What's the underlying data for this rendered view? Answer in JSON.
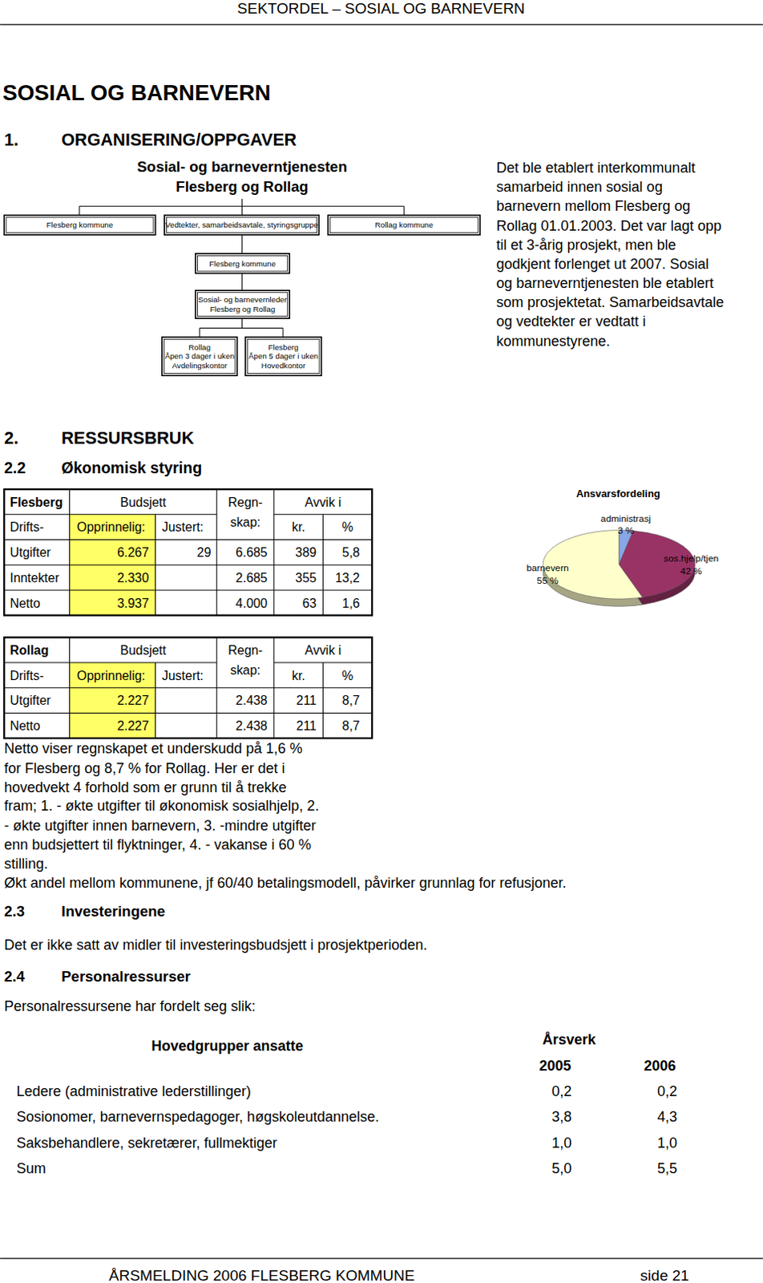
{
  "header": "SEKTORDEL – SOSIAL OG BARNEVERN",
  "title": "SOSIAL OG BARNEVERN",
  "section_1": {
    "number": "1.",
    "heading": "ORGANISERING/OPPGAVER"
  },
  "org_chart": {
    "title_lines": [
      "Sosial- og barneverntjenesten",
      "Flesberg og Rollag"
    ],
    "nodes": [
      {
        "lines": [
          "Flesberg kommune"
        ]
      },
      {
        "lines": [
          "Vedtekter, samarbeidsavtale, styringsgruppe"
        ]
      },
      {
        "lines": [
          "Rollag kommune"
        ]
      },
      {
        "lines": [
          "Flesberg kommune"
        ]
      },
      {
        "lines": [
          "Sosial- og barnevernleder",
          "Flesberg og Rollag"
        ]
      },
      {
        "lines": [
          "Rollag",
          "Åpen 3 dager i uken",
          "Avdelingskontor"
        ]
      },
      {
        "lines": [
          "Flesberg",
          "Åpen 5 dager i uken",
          "Hovedkontor"
        ]
      }
    ]
  },
  "intro_text": [
    "Det ble etablert interkommunalt",
    "samarbeid innen sosial og",
    "barnevern mellom Flesberg og",
    "Rollag 01.01.2003. Det var lagt opp",
    "til et 3-årig prosjekt, men ble",
    "godkjent forlenget ut 2007. Sosial",
    "og barneverntjenesten ble etablert",
    "som prosjektetat. Samarbeidsavtale",
    "og vedtekter er vedtatt i",
    "kommunestyrene."
  ],
  "section_2": {
    "number": "2.",
    "heading": "RESSURSBRUK"
  },
  "section_2_2": {
    "number": "2.2",
    "heading": "Økonomisk styring"
  },
  "budget_tables": [
    {
      "title": "Flesberg",
      "subtitle": "Drifts-",
      "budget": "Budsjett",
      "original": "Opprinnelig:",
      "adjusted": "Justert:",
      "accounts": [
        "Regn-",
        "skap:"
      ],
      "deviation": "Avvik i",
      "deviation_units": [
        "kr.",
        "%"
      ],
      "rows": [
        [
          "Utgifter",
          "6.267",
          "29",
          "6.685",
          "389",
          "5,8"
        ],
        [
          "Inntekter",
          "2.330",
          null,
          "2.685",
          "355",
          "13,2"
        ],
        [
          "Netto",
          "3.937",
          null,
          "4.000",
          "63",
          "1,6"
        ]
      ]
    },
    {
      "title": "Rollag",
      "subtitle": "Drifts-",
      "budget": "Budsjett",
      "original": "Opprinnelig:",
      "adjusted": "Justert:",
      "accounts": [
        "Regn-",
        "skap:"
      ],
      "deviation": "Avvik i",
      "deviation_units": [
        "kr.",
        "%"
      ],
      "rows": [
        [
          "Utgifter",
          "2.227",
          null,
          "2.438",
          "211",
          "8,7"
        ],
        [
          "Netto",
          "2.227",
          null,
          "2.438",
          "211",
          "8,7"
        ]
      ]
    }
  ],
  "chart_data": {
    "type": "pie",
    "title": "Ansvarsfordeling",
    "categories": [
      "administrasj",
      "sos.hjelp/tjen",
      "barnevern"
    ],
    "values": [
      3,
      42,
      55
    ],
    "value_labels": [
      "3 %",
      "42 %",
      "55 %"
    ],
    "colors": [
      "#8aa6e6",
      "#993366",
      "#ffffcc"
    ],
    "data_labels": true
  },
  "budget_text": [
    "Netto viser regnskapet et underskudd på 1,6 %",
    "for Flesberg og 8,7 % for Rollag. Her er det i",
    "hovedvekt 4 forhold som er grunn til å trekke",
    "fram; 1. - økte utgifter til økonomisk sosialhjelp, 2.",
    "- økte utgifter innen barnevern, 3. -mindre utgifter",
    "enn budsjettert til flyktninger, 4. - vakanse i 60 %",
    "stilling.",
    "Økt andel mellom kommunene, jf 60/40 betalingsmodell, påvirker grunnlag for refusjoner."
  ],
  "section_2_3": {
    "number": "2.3",
    "heading": "Investeringene",
    "text": "Det er ikke satt av midler til investeringsbudsjett i prosjektperioden."
  },
  "section_2_4": {
    "number": "2.4",
    "heading": "Personalressurser",
    "text": "Personalressursene har fordelt seg slik:"
  },
  "staff_table": {
    "group_header": "Hovedgrupper ansatte",
    "unit_header": "Årsverk",
    "years": [
      "2005",
      "2006"
    ],
    "rows": [
      [
        "Ledere (administrative lederstillinger)",
        "0,2",
        "0,2"
      ],
      [
        "Sosionomer, barnevernspedagoger, høgskoleutdannelse.",
        "3,8",
        "4,3"
      ],
      [
        "Saksbehandlere, sekretærer, fullmektiger",
        "1,0",
        "1,0"
      ],
      [
        "Sum",
        "5,0",
        "5,5"
      ]
    ]
  },
  "footer": {
    "text": "ÅRSMELDING 2006 FLESBERG KOMMUNE",
    "page": "side 21"
  }
}
